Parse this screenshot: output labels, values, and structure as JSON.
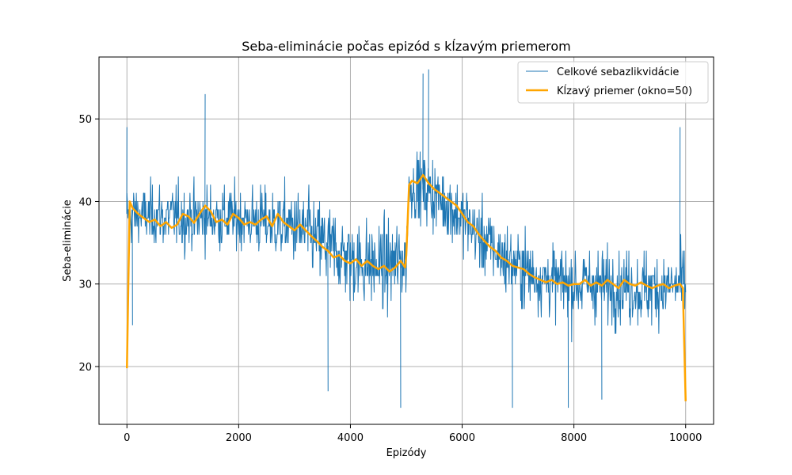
{
  "chart_data": {
    "type": "line",
    "title": "Seba-eliminácie počas epizód s kĺzavým priemerom",
    "xlabel": "Epizódy",
    "ylabel": "Seba-eliminácie",
    "xlim": [
      -500,
      10500
    ],
    "ylim": [
      13,
      57.5
    ],
    "xticks": [
      0,
      2000,
      4000,
      6000,
      8000,
      10000
    ],
    "yticks": [
      20,
      30,
      40,
      50
    ],
    "grid": true,
    "legend_position": "top-right",
    "colors": {
      "raw": "#1f77b4",
      "moving_average": "#ffa500"
    },
    "series": [
      {
        "name": "Celkové sebazlikvidácie",
        "description_of_shape": "noisy per-episode values",
        "band": {
          "x": [
            0,
            1000,
            2000,
            3000,
            3500,
            4000,
            4500,
            5000,
            5050,
            5500,
            6000,
            6500,
            7000,
            7500,
            8000,
            8500,
            9000,
            9500,
            10000
          ],
          "center": [
            38.5,
            38,
            38,
            37,
            35,
            33,
            32,
            33,
            42,
            41,
            38,
            34.5,
            32,
            30.5,
            30,
            30,
            29.5,
            29.5,
            30
          ],
          "low": [
            31,
            30,
            30,
            27,
            23,
            21,
            20,
            24,
            34,
            32,
            29,
            25,
            22,
            21,
            20,
            20,
            20,
            20,
            21
          ],
          "high": [
            47,
            48,
            48,
            47,
            46,
            44,
            44,
            46,
            52,
            52,
            48,
            44,
            42,
            40,
            40,
            40,
            40,
            40,
            41
          ],
          "peaks": [
            [
              0,
              49
            ],
            [
              1400,
              53
            ],
            [
              5400,
              56
            ],
            [
              5300,
              55.5
            ],
            [
              9900,
              49
            ]
          ],
          "troughs": [
            [
              100,
              25
            ],
            [
              3600,
              17
            ],
            [
              4900,
              15
            ],
            [
              6900,
              15
            ],
            [
              7900,
              15
            ],
            [
              8500,
              16
            ]
          ]
        }
      },
      {
        "name": "Kĺzavý priemer (okno=50)",
        "x": [
          0,
          50,
          100,
          200,
          300,
          400,
          500,
          600,
          700,
          800,
          900,
          1000,
          1100,
          1200,
          1300,
          1400,
          1500,
          1600,
          1700,
          1800,
          1900,
          2000,
          2100,
          2200,
          2300,
          2400,
          2500,
          2600,
          2700,
          2800,
          2900,
          3000,
          3100,
          3200,
          3300,
          3400,
          3500,
          3600,
          3700,
          3800,
          3900,
          4000,
          4100,
          4200,
          4300,
          4400,
          4500,
          4600,
          4700,
          4800,
          4900,
          4980,
          5000,
          5050,
          5100,
          5200,
          5300,
          5400,
          5500,
          5600,
          5700,
          5800,
          5900,
          6000,
          6100,
          6200,
          6300,
          6400,
          6500,
          6600,
          6700,
          6800,
          6900,
          7000,
          7100,
          7200,
          7300,
          7400,
          7500,
          7600,
          7700,
          7800,
          7900,
          8000,
          8100,
          8200,
          8300,
          8400,
          8500,
          8600,
          8700,
          8800,
          8900,
          9000,
          9100,
          9200,
          9300,
          9400,
          9500,
          9600,
          9700,
          9800,
          9900,
          9950,
          10000
        ],
        "y": [
          19.8,
          40,
          39.2,
          38.5,
          38,
          37.5,
          37.8,
          37,
          37.5,
          36.8,
          37.2,
          38.5,
          38.2,
          37.4,
          38.5,
          39.5,
          38.8,
          37.5,
          37.8,
          37.2,
          38.5,
          38,
          37.2,
          37.5,
          37.2,
          37.8,
          38.2,
          37,
          38.5,
          37.5,
          37,
          36.5,
          37.2,
          36.5,
          35.8,
          35.2,
          34.5,
          34,
          33.2,
          33.5,
          32.8,
          32.5,
          33,
          32.2,
          32.8,
          32.2,
          31.8,
          32.2,
          31.5,
          32,
          32.8,
          32,
          33.5,
          42,
          42.5,
          42.2,
          43.2,
          42.2,
          41.5,
          41,
          40.5,
          40,
          39.5,
          38.5,
          37.5,
          37,
          36,
          35.2,
          34.5,
          34,
          33.2,
          32.8,
          32.2,
          32,
          31.8,
          31.2,
          30.8,
          30.5,
          30.2,
          30.5,
          30,
          30.2,
          29.8,
          30,
          30,
          30.5,
          29.8,
          30.2,
          29.8,
          30.5,
          30,
          29.5,
          30.5,
          30,
          29.8,
          30.2,
          29.8,
          29.5,
          29.8,
          30,
          29.5,
          29.8,
          30,
          29.5,
          15.8
        ]
      }
    ]
  }
}
